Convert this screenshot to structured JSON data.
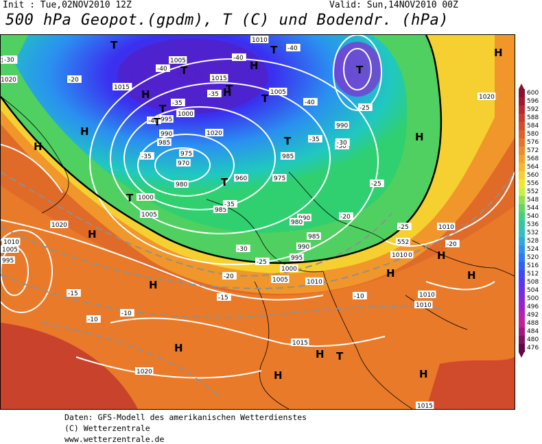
{
  "header": {
    "init": "Init : Tue,02NOV2010 12Z",
    "valid": "Valid: Sun,14NOV2010 00Z",
    "title": "500 hPa Geopot.(gpdm), T (C) und Bodendr. (hPa)"
  },
  "footer": {
    "line1": "Daten: GFS-Modell des amerikanischen Wetterdienstes",
    "line2": "(C) Wetterzentrale",
    "line3": "www.wetterzentrale.de"
  },
  "legend": {
    "values": [
      "600",
      "596",
      "592",
      "588",
      "584",
      "580",
      "576",
      "572",
      "568",
      "564",
      "560",
      "556",
      "552",
      "548",
      "544",
      "540",
      "536",
      "532",
      "528",
      "524",
      "520",
      "516",
      "512",
      "508",
      "504",
      "500",
      "496",
      "492",
      "488",
      "484",
      "480",
      "476"
    ],
    "colors": [
      "#8a1030",
      "#a01830",
      "#b42a30",
      "#c83c30",
      "#d44e2c",
      "#e0602a",
      "#e8742a",
      "#f08a2a",
      "#f5a02a",
      "#f8b82a",
      "#f8d030",
      "#f0e830",
      "#c8f040",
      "#90e050",
      "#60d860",
      "#40d080",
      "#30c8a0",
      "#30c0c0",
      "#30a8e0",
      "#3090f0",
      "#3078f8",
      "#3060f8",
      "#4048f8",
      "#5838f0",
      "#7030e8",
      "#8828d8",
      "#a020c8",
      "#b820b0",
      "#c02098",
      "#a01880",
      "#801060",
      "#600848"
    ]
  },
  "map": {
    "pressure_labels": [
      "1010",
      "1005",
      "1015",
      "1005",
      "1000",
      "995",
      "990",
      "985",
      "975",
      "970",
      "980",
      "960",
      "975",
      "985",
      "1000",
      "1005",
      "990",
      "1010",
      "985",
      "990",
      "980",
      "985",
      "995",
      "990",
      "1000",
      "1005",
      "1010",
      "1015",
      "1020",
      "1020",
      "1010",
      "1005",
      "995",
      "1010",
      "1010",
      "1010",
      "1015",
      "1020",
      "1020",
      "1005",
      "1020",
      "1020",
      "1010",
      "1015"
    ],
    "temp_labels": [
      "-30",
      "-40",
      "-40",
      "-40",
      "-35",
      "-40",
      "-35",
      "-40",
      "-35",
      "-30",
      "-25",
      "-35",
      "-30",
      "-25",
      "-20",
      "-25",
      "-20",
      "-15",
      "-10",
      "-10",
      "-10",
      "-20",
      "-15",
      "-20",
      "-25",
      "-30",
      "-35"
    ],
    "contour_tag": "552",
    "centers": [
      {
        "t": "T"
      },
      {
        "t": "T"
      },
      {
        "t": "T"
      },
      {
        "t": "T"
      },
      {
        "t": "T"
      },
      {
        "t": "T"
      },
      {
        "t": "T"
      },
      {
        "t": "T"
      },
      {
        "t": "T"
      },
      {
        "t": "T"
      },
      {
        "t": "T"
      },
      {
        "t": "T"
      },
      {
        "t": "H"
      },
      {
        "t": "H"
      },
      {
        "t": "H"
      },
      {
        "t": "H"
      },
      {
        "t": "H"
      },
      {
        "t": "H"
      },
      {
        "t": "H"
      },
      {
        "t": "H"
      },
      {
        "t": "H"
      },
      {
        "t": "H"
      },
      {
        "t": "H"
      },
      {
        "t": "H"
      },
      {
        "t": "H"
      },
      {
        "t": "H"
      },
      {
        "t": "H"
      },
      {
        "t": "H"
      }
    ]
  }
}
